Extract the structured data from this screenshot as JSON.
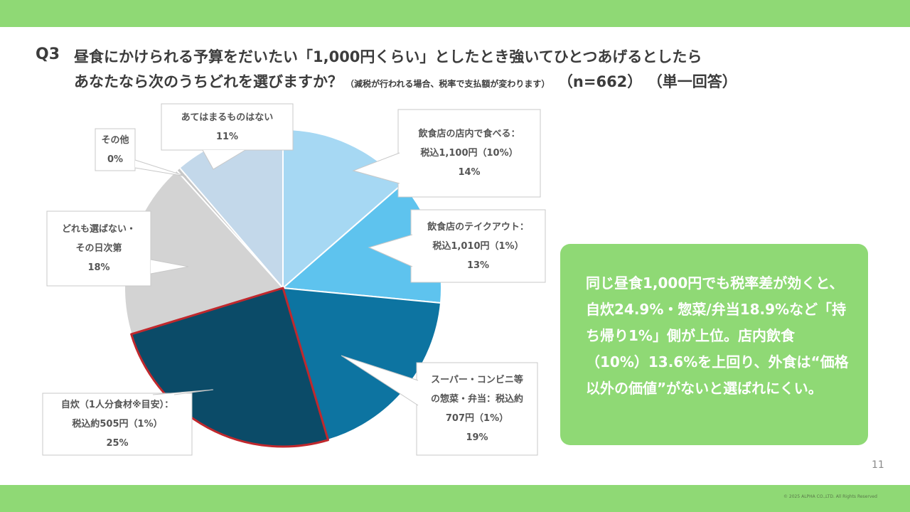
{
  "header": {
    "q_label": "Q3",
    "question_line1": "昼食にかけられる予算をだいたい「1,000円くらい」としたとき強いてひとつあげるとしたら",
    "question_line2": "あなたなら次のうちどれを選びますか？",
    "note": "（減税が行われる場合、税率で支払額が変わります）",
    "sample": "（n=662）",
    "answer_type": "（単一回答）"
  },
  "chart_data": {
    "type": "pie",
    "title": "",
    "start": "12 o'clock, clockwise",
    "slices": [
      {
        "label_lines": [
          "飲食店の店内で食べる：",
          "税込1,100円（10%）"
        ],
        "value": 13.6,
        "display": "14%",
        "color": "#a6d8f3"
      },
      {
        "label_lines": [
          "飲食店のテイクアウト：",
          "税込1,010円（1%）"
        ],
        "value": 12.9,
        "display": "13%",
        "color": "#5ec3ee"
      },
      {
        "label_lines": [
          "スーパー・コンビニ等",
          "の惣菜・弁当：税込約",
          "707円（1%）"
        ],
        "value": 18.9,
        "display": "19%",
        "color": "#0d74a1"
      },
      {
        "label_lines": [
          "自炊（1人分食材※目安）：",
          "税込約505円（1%）"
        ],
        "value": 24.9,
        "display": "25%",
        "color": "#0b4b68",
        "highlight": "#c0282d"
      },
      {
        "label_lines": [
          "どれも選ばない・",
          "その日次第"
        ],
        "value": 18.0,
        "display": "18%",
        "color": "#d3d3d3"
      },
      {
        "label_lines": [
          "その他"
        ],
        "value": 0.4,
        "display": "0%",
        "color": "#c7c7c7"
      },
      {
        "label_lines": [
          "あてはまるものはない"
        ],
        "value": 11.3,
        "display": "11%",
        "color": "#c3d8ea"
      }
    ]
  },
  "summary": {
    "text": "同じ昼食1,000円でも税率差が効くと、自炊24.9%・惣菜/弁当18.9%など「持ち帰り1%」側が上位。店内飲食（10%）13.6%を上回り、外食は“価格以外の価値”がないと選ばれにくい。"
  },
  "footer": {
    "page_number": "11",
    "copyright": "© 2025 ALPHA CO.,LTD. All Rights Reserved"
  },
  "colors": {
    "accent_green": "#8fd975",
    "highlight_red": "#c0282d"
  }
}
